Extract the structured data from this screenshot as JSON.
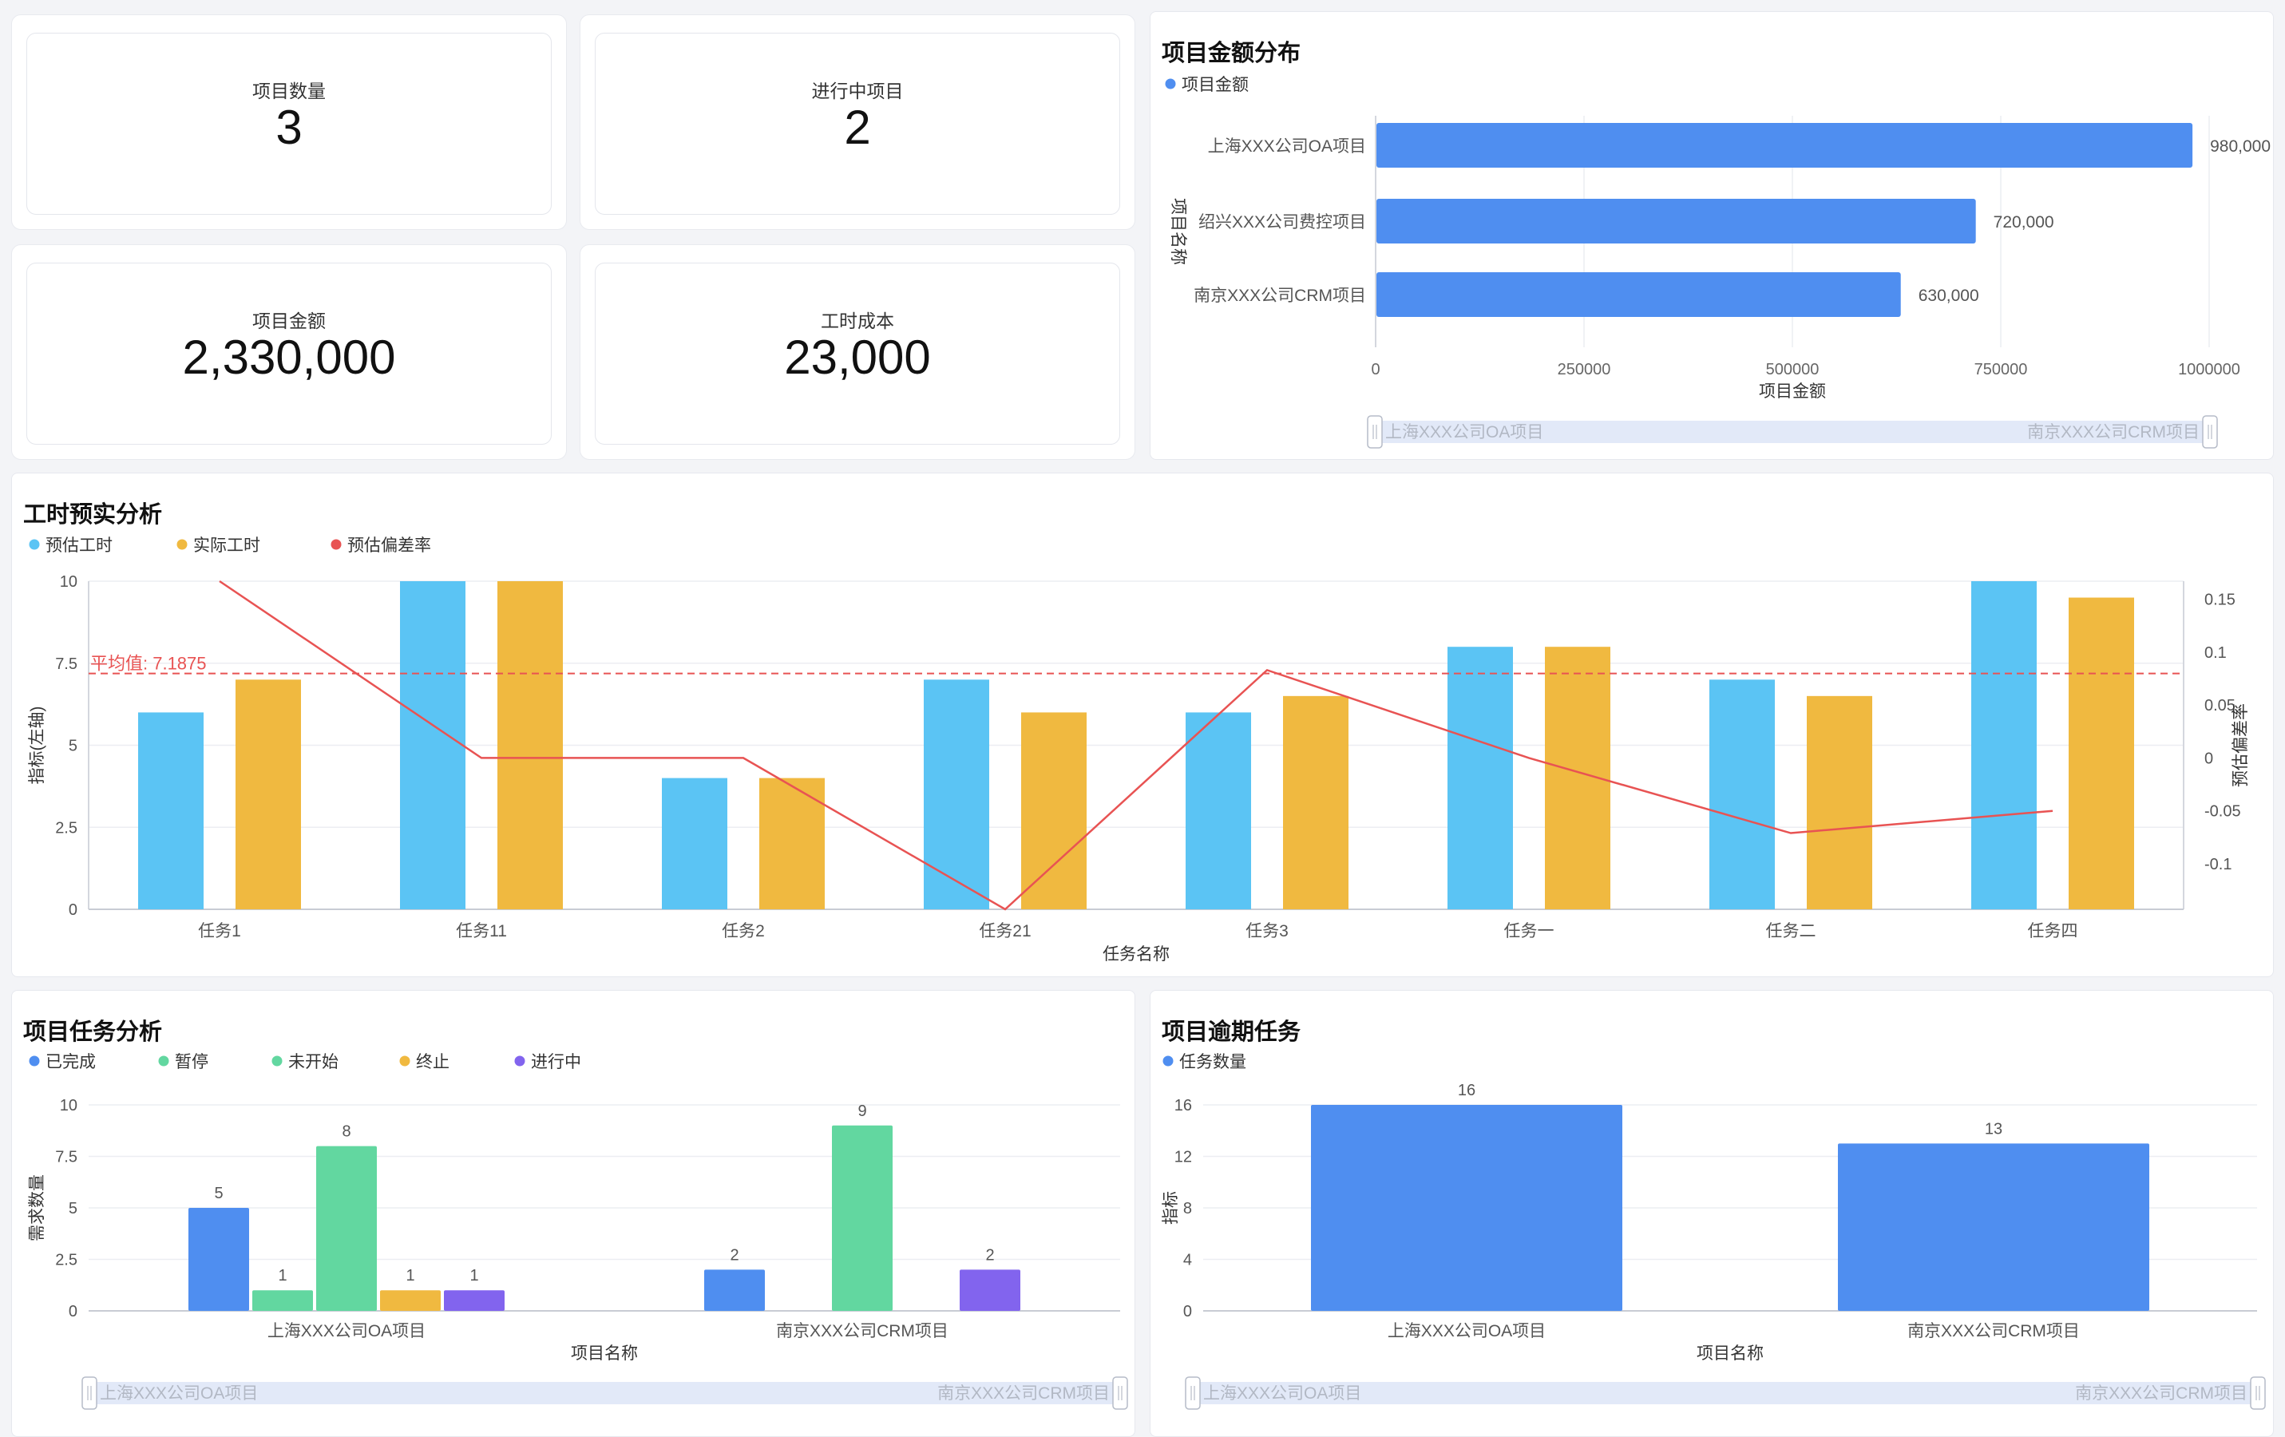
{
  "kpis": [
    {
      "label": "项目数量",
      "value": "3"
    },
    {
      "label": "进行中项目",
      "value": "2"
    },
    {
      "label": "项目金额",
      "value": "2,330,000"
    },
    {
      "label": "工时成本",
      "value": "23,000"
    }
  ],
  "panels": {
    "amount": {
      "title": "项目金额分布"
    },
    "hours": {
      "title": "工时预实分析"
    },
    "tasks": {
      "title": "项目任务分析"
    },
    "overdue": {
      "title": "项目逾期任务"
    }
  },
  "chart_data": [
    {
      "id": "amount",
      "type": "bar",
      "orientation": "horizontal",
      "title": "项目金额分布",
      "categories": [
        "上海XXX公司OA项目",
        "绍兴XXX公司费控项目",
        "南京XXX公司CRM项目"
      ],
      "series": [
        {
          "name": "项目金额",
          "values": [
            980000,
            720000,
            630000
          ],
          "color": "#4f8ef0"
        }
      ],
      "value_labels": [
        "980,000",
        "720,000",
        "630,000"
      ],
      "xlabel": "项目金额",
      "ylabel": "项目名称",
      "xlim": [
        0,
        1000000
      ],
      "xticks": [
        "0",
        "250000",
        "500000",
        "750000",
        "1000000"
      ],
      "legend": "top-left",
      "zoom": {
        "start": "上海XXX公司OA项目",
        "end": "南京XXX公司CRM项目"
      }
    },
    {
      "id": "hours",
      "type": "bar",
      "title": "工时预实分析",
      "categories": [
        "任务1",
        "任务11",
        "任务2",
        "任务21",
        "任务3",
        "任务一",
        "任务二",
        "任务四"
      ],
      "series": [
        {
          "name": "预估工时",
          "values": [
            6,
            10,
            4,
            7,
            6,
            8,
            7,
            10
          ],
          "color": "#5bc4f4",
          "axis": "left"
        },
        {
          "name": "实际工时",
          "values": [
            7,
            10,
            4,
            6,
            6.5,
            8,
            6.5,
            9.5
          ],
          "color": "#f0b940",
          "axis": "left"
        },
        {
          "name": "预估偏差率",
          "type": "line",
          "values": [
            0.167,
            0,
            0,
            -0.143,
            0.083,
            0,
            -0.071,
            -0.05
          ],
          "color": "#e85353",
          "axis": "right"
        }
      ],
      "average_line": {
        "label": "平均值: 7.1875",
        "value": 7.1875
      },
      "xlabel": "任务名称",
      "ylabel": "指标(左轴)",
      "ylabel_right": "预估偏差率",
      "ylim": [
        0,
        10
      ],
      "yticks": [
        "0",
        "2.5",
        "5",
        "7.5",
        "10"
      ],
      "ylim_right": [
        -0.143,
        0.167
      ],
      "yticks_right": [
        "0.15",
        "0.1",
        "0.05",
        "0",
        "-0.05",
        "-0.1"
      ],
      "legend": "top-left"
    },
    {
      "id": "tasks",
      "type": "bar",
      "title": "项目任务分析",
      "categories": [
        "上海XXX公司OA项目",
        "南京XXX公司CRM项目"
      ],
      "series": [
        {
          "name": "已完成",
          "values": [
            5,
            2
          ],
          "color": "#4f8ef0"
        },
        {
          "name": "暂停",
          "values": [
            1,
            0
          ],
          "color": "#62d7a0"
        },
        {
          "name": "未开始",
          "values": [
            8,
            9
          ],
          "color": "#62d7a0"
        },
        {
          "name": "终止",
          "values": [
            1,
            0
          ],
          "color": "#f0b940"
        },
        {
          "name": "进行中",
          "values": [
            1,
            2
          ],
          "color": "#8264ee"
        }
      ],
      "xlabel": "项目名称",
      "ylabel": "需求数量",
      "ylim": [
        0,
        10
      ],
      "yticks": [
        "0",
        "2.5",
        "5",
        "7.5",
        "10"
      ],
      "legend": "top-left",
      "zoom": {
        "start": "上海XXX公司OA项目",
        "end": "南京XXX公司CRM项目"
      }
    },
    {
      "id": "overdue",
      "type": "bar",
      "title": "项目逾期任务",
      "categories": [
        "上海XXX公司OA项目",
        "南京XXX公司CRM项目"
      ],
      "series": [
        {
          "name": "任务数量",
          "values": [
            16,
            13
          ],
          "color": "#4f8ef0"
        }
      ],
      "xlabel": "项目名称",
      "ylabel": "指标",
      "ylim": [
        0,
        16
      ],
      "yticks": [
        "0",
        "4",
        "8",
        "12",
        "16"
      ],
      "legend": "top-left",
      "zoom": {
        "start": "上海XXX公司OA项目",
        "end": "南京XXX公司CRM项目"
      }
    }
  ]
}
